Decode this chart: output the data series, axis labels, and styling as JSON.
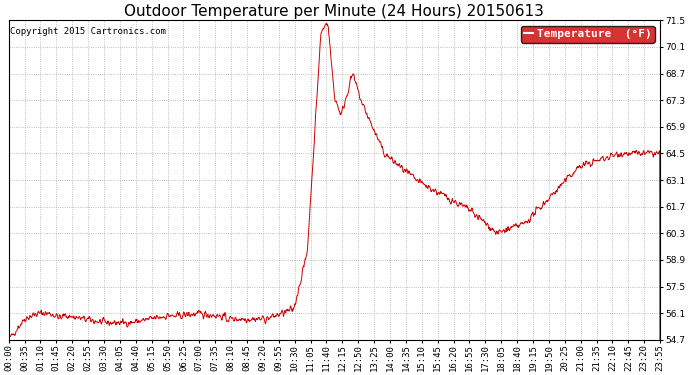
{
  "title": "Outdoor Temperature per Minute (24 Hours) 20150613",
  "copyright_text": "Copyright 2015 Cartronics.com",
  "legend_label": "Temperature  (°F)",
  "legend_bg": "#cc0000",
  "legend_text_color": "#ffffff",
  "line_color": "#cc0000",
  "bg_color": "#ffffff",
  "plot_bg_color": "#ffffff",
  "grid_color": "#aaaaaa",
  "ylim": [
    54.7,
    71.5
  ],
  "yticks": [
    54.7,
    56.1,
    57.5,
    58.9,
    60.3,
    61.7,
    63.1,
    64.5,
    65.9,
    67.3,
    68.7,
    70.1,
    71.5
  ],
  "xtick_labels": [
    "00:00",
    "00:35",
    "01:10",
    "01:45",
    "02:20",
    "02:55",
    "03:30",
    "04:05",
    "04:40",
    "05:15",
    "05:50",
    "06:25",
    "07:00",
    "07:35",
    "08:10",
    "08:45",
    "09:20",
    "09:55",
    "10:30",
    "11:05",
    "11:40",
    "12:15",
    "12:50",
    "13:25",
    "14:00",
    "14:35",
    "15:10",
    "15:45",
    "16:20",
    "16:55",
    "17:30",
    "18:05",
    "18:40",
    "19:15",
    "19:50",
    "20:25",
    "21:00",
    "21:35",
    "22:10",
    "22:45",
    "23:20",
    "23:55"
  ],
  "title_fontsize": 11,
  "copyright_fontsize": 6.5,
  "tick_fontsize": 6.5,
  "legend_fontsize": 8
}
